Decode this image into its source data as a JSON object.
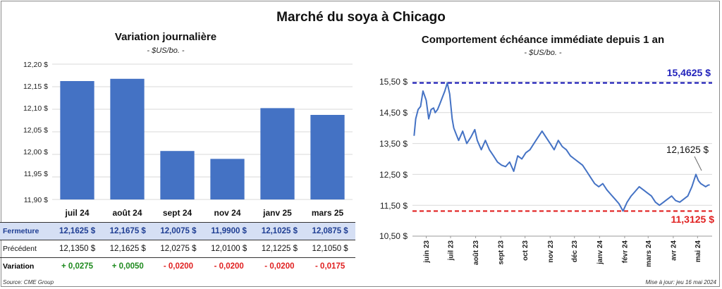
{
  "title": "Marché du soya à Chicago",
  "left_chart": {
    "title": "Variation journalière",
    "unit": "- $US/bo. -",
    "yticks": [
      "12,20 $",
      "12,15 $",
      "12,10 $",
      "12,05 $",
      "12,00 $",
      "11,95 $",
      "11,90 $"
    ]
  },
  "right_chart": {
    "title": "Comportement  échéance immédiate depuis 1 an",
    "unit": "- $US/bo. -",
    "yticks": [
      "15,50 $",
      "14,50 $",
      "13,50 $",
      "12,50 $",
      "11,50 $",
      "10,50 $"
    ],
    "xticks": [
      "juin 23",
      "juil 23",
      "août 23",
      "sept 23",
      "oct 23",
      "nov 23",
      "déc 23",
      "janv 24",
      "févr 24",
      "mars 24",
      "avr 24",
      "mai 24"
    ],
    "high_label": "15,4625 $",
    "low_label": "11,3125 $",
    "last_label": "12,1625 $"
  },
  "table": {
    "row1_label": "Fermeture",
    "row2_label": "Précédent",
    "row3_label": "Variation",
    "row1": [
      "12,1625  $",
      "12,1675  $",
      "12,0075  $",
      "11,9900  $",
      "12,1025  $",
      "12,0875  $"
    ],
    "row2": [
      "12,1350  $",
      "12,1625  $",
      "12,0275  $",
      "12,0100  $",
      "12,1225  $",
      "12,1050  $"
    ],
    "row3": [
      "+ 0,0275",
      "+ 0,0050",
      "- 0,0200",
      "- 0,0200",
      "- 0,0200",
      "- 0,0175"
    ]
  },
  "source": "Source: CME Group",
  "update": "Mise à jour: jeu 16 mai 2024",
  "colors": {
    "bar": "#4472c4",
    "high_line": "#2222bb",
    "low_line": "#e02020",
    "series": "#4472c4",
    "positive": "#1e8a1e",
    "negative": "#e02020"
  },
  "chart_data": [
    {
      "type": "bar",
      "title": "Variation journalière",
      "ylabel": "$US/bo.",
      "categories": [
        "juil 24",
        "août 24",
        "sept 24",
        "nov 24",
        "janv 25",
        "mars 25"
      ],
      "values": [
        12.1625,
        12.1675,
        12.0075,
        11.99,
        12.1025,
        12.0875
      ],
      "ylim": [
        11.9,
        12.2
      ],
      "grid": true
    },
    {
      "type": "line",
      "title": "Comportement  échéance immédiate depuis 1 an",
      "ylabel": "$US/bo.",
      "x": [
        "2023-05-17",
        "2023-05-19",
        "2023-05-22",
        "2023-05-25",
        "2023-05-28",
        "2023-06-01",
        "2023-06-04",
        "2023-06-07",
        "2023-06-10",
        "2023-06-12",
        "2023-06-15",
        "2023-06-18",
        "2023-06-21",
        "2023-06-24",
        "2023-06-27",
        "2023-06-30",
        "2023-07-03",
        "2023-07-05",
        "2023-07-08",
        "2023-07-11",
        "2023-07-16",
        "2023-07-21",
        "2023-07-26",
        "2023-07-31",
        "2023-08-03",
        "2023-08-08",
        "2023-08-13",
        "2023-08-18",
        "2023-08-23",
        "2023-08-28",
        "2023-09-02",
        "2023-09-07",
        "2023-09-12",
        "2023-09-17",
        "2023-09-22",
        "2023-09-27",
        "2023-10-02",
        "2023-10-07",
        "2023-10-12",
        "2023-10-17",
        "2023-10-22",
        "2023-10-27",
        "2023-11-01",
        "2023-11-06",
        "2023-11-11",
        "2023-11-16",
        "2023-11-21",
        "2023-11-26",
        "2023-12-01",
        "2023-12-06",
        "2023-12-11",
        "2023-12-16",
        "2023-12-21",
        "2023-12-26",
        "2023-12-31",
        "2024-01-05",
        "2024-01-10",
        "2024-01-15",
        "2024-01-20",
        "2024-01-25",
        "2024-01-30",
        "2024-02-04",
        "2024-02-09",
        "2024-02-14",
        "2024-02-19",
        "2024-02-24",
        "2024-02-29",
        "2024-03-05",
        "2024-03-10",
        "2024-03-15",
        "2024-03-20",
        "2024-03-25",
        "2024-03-30",
        "2024-04-04",
        "2024-04-09",
        "2024-04-14",
        "2024-04-19",
        "2024-04-24",
        "2024-04-29",
        "2024-05-02",
        "2024-05-05",
        "2024-05-08",
        "2024-05-11",
        "2024-05-14",
        "2024-05-16"
      ],
      "series": [
        {
          "values": [
            13.75,
            14.3,
            14.6,
            14.7,
            15.2,
            14.9,
            14.3,
            14.6,
            14.65,
            14.5,
            14.6,
            14.8,
            15.0,
            15.2,
            15.4625,
            15.1,
            14.3,
            14.0,
            13.8,
            13.6,
            13.9,
            13.5,
            13.7,
            13.95,
            13.6,
            13.3,
            13.6,
            13.3,
            13.1,
            12.9,
            12.8,
            12.75,
            12.9,
            12.6,
            13.1,
            13.0,
            13.2,
            13.3,
            13.5,
            13.7,
            13.9,
            13.7,
            13.5,
            13.3,
            13.6,
            13.4,
            13.3,
            13.1,
            13.0,
            12.9,
            12.8,
            12.6,
            12.4,
            12.2,
            12.1,
            12.2,
            12.0,
            11.85,
            11.7,
            11.55,
            11.3125,
            11.6,
            11.8,
            11.95,
            12.1,
            12.0,
            11.9,
            11.8,
            11.6,
            11.5,
            11.6,
            11.7,
            11.8,
            11.65,
            11.6,
            11.7,
            11.8,
            12.1,
            12.5,
            12.3,
            12.2,
            12.15,
            12.1,
            12.15,
            12.1625
          ]
        }
      ],
      "ylim": [
        10.5,
        15.5
      ],
      "reference_lines": [
        15.4625,
        11.3125
      ],
      "grid": true
    }
  ]
}
